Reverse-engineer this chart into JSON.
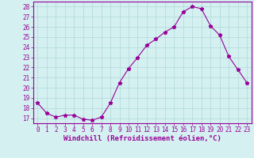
{
  "hours": [
    0,
    1,
    2,
    3,
    4,
    5,
    6,
    7,
    8,
    9,
    10,
    11,
    12,
    13,
    14,
    15,
    16,
    17,
    18,
    19,
    20,
    21,
    22,
    23
  ],
  "values": [
    18.5,
    17.5,
    17.1,
    17.3,
    17.3,
    16.9,
    16.8,
    17.1,
    18.5,
    20.5,
    21.9,
    23.0,
    24.2,
    24.8,
    25.5,
    26.0,
    27.5,
    28.0,
    27.8,
    26.1,
    25.2,
    23.1,
    21.8,
    20.5
  ],
  "line_color": "#990099",
  "marker": "*",
  "bg_color": "#d4f0f0",
  "grid_color": "#b0d8d8",
  "axis_color": "#990099",
  "border_color": "#990099",
  "xlabel": "Windchill (Refroidissement éolien,°C)",
  "ylim_min": 16.5,
  "ylim_max": 28.5,
  "xlim_min": -0.5,
  "xlim_max": 23.5,
  "yticks": [
    17,
    18,
    19,
    20,
    21,
    22,
    23,
    24,
    25,
    26,
    27,
    28
  ],
  "xticks": [
    0,
    1,
    2,
    3,
    4,
    5,
    6,
    7,
    8,
    9,
    10,
    11,
    12,
    13,
    14,
    15,
    16,
    17,
    18,
    19,
    20,
    21,
    22,
    23
  ],
  "tick_fontsize": 5.5,
  "xlabel_fontsize": 6.5
}
